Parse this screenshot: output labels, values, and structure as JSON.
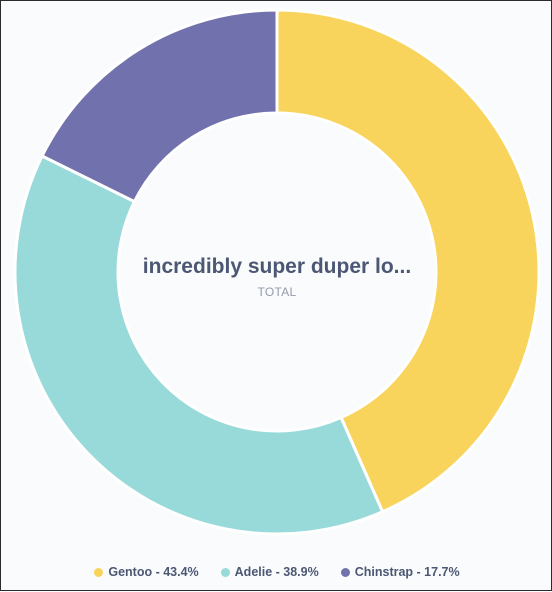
{
  "chart_data": {
    "type": "pie",
    "donut": true,
    "center": {
      "value": "incredibly super duper lo...",
      "label": "TOTAL"
    },
    "slices": [
      {
        "name": "Gentoo",
        "percent": 43.4,
        "color": "#f9d45c",
        "legend": "Gentoo - 43.4%"
      },
      {
        "name": "Adelie",
        "percent": 38.9,
        "color": "#98d9d9",
        "legend": "Adelie - 38.9%"
      },
      {
        "name": "Chinstrap",
        "percent": 17.7,
        "color": "#7172ad",
        "legend": "Chinstrap - 17.7%"
      }
    ],
    "legend_position": "bottom"
  }
}
